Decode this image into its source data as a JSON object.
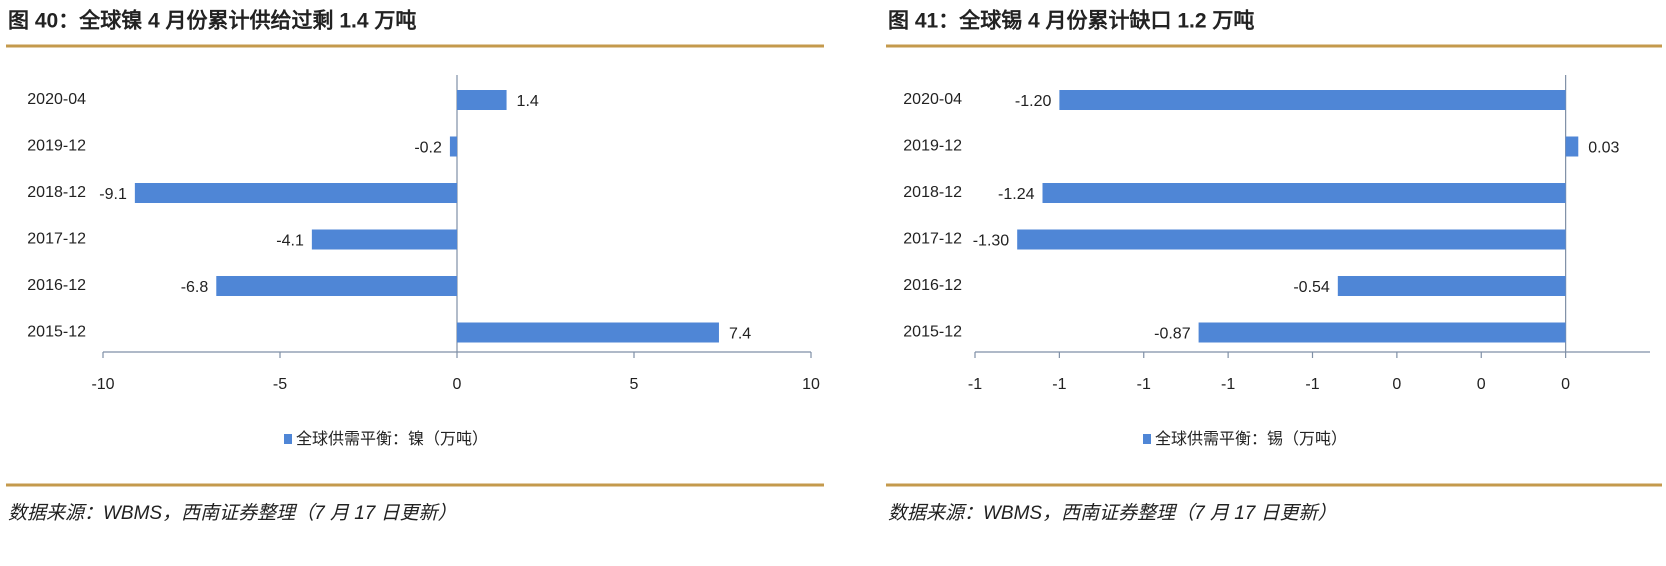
{
  "chart_data": [
    {
      "type": "bar",
      "orientation": "horizontal",
      "title": "图 40：全球镍 4 月份累计供给过剩 1.4 万吨",
      "categories": [
        "2020-04",
        "2019-12",
        "2018-12",
        "2017-12",
        "2016-12",
        "2015-12"
      ],
      "series": [
        {
          "name": "全球供需平衡：镍（万吨）",
          "color": "#4f86d6",
          "values": [
            1.4,
            -0.2,
            -9.1,
            -4.1,
            -6.8,
            7.4
          ]
        }
      ],
      "xlim": [
        -10,
        10
      ],
      "xticks": [
        -10,
        -5,
        0,
        5,
        10
      ],
      "legend": "bottom",
      "source": "数据来源：WBMS，西南证券整理（7 月 17 日更新）"
    },
    {
      "type": "bar",
      "orientation": "horizontal",
      "title": "图 41：全球锡 4 月份累计缺口 1.2 万吨",
      "categories": [
        "2020-04",
        "2019-12",
        "2018-12",
        "2017-12",
        "2016-12",
        "2015-12"
      ],
      "series": [
        {
          "name": "全球供需平衡：锡（万吨）",
          "color": "#4f86d6",
          "values": [
            -1.2,
            0.03,
            -1.24,
            -1.3,
            -0.54,
            -0.87
          ],
          "value_labels": [
            "-1.20",
            "0.03",
            "-1.24",
            "-1.30",
            "-0.54",
            "-0.87"
          ]
        }
      ],
      "xlim": [
        -1.4,
        0.2
      ],
      "xticks": [
        {
          "value": -1.4,
          "label": "-1"
        },
        {
          "value": -1.2,
          "label": "-1"
        },
        {
          "value": -1.0,
          "label": "-1"
        },
        {
          "value": -0.8,
          "label": "-1"
        },
        {
          "value": -0.6,
          "label": "-1"
        },
        {
          "value": -0.4,
          "label": "0"
        },
        {
          "value": -0.2,
          "label": "0"
        },
        {
          "value": 0,
          "label": "0"
        }
      ],
      "legend": "bottom",
      "source": "数据来源：WBMS，西南证券整理（7 月 17 日更新）"
    }
  ]
}
